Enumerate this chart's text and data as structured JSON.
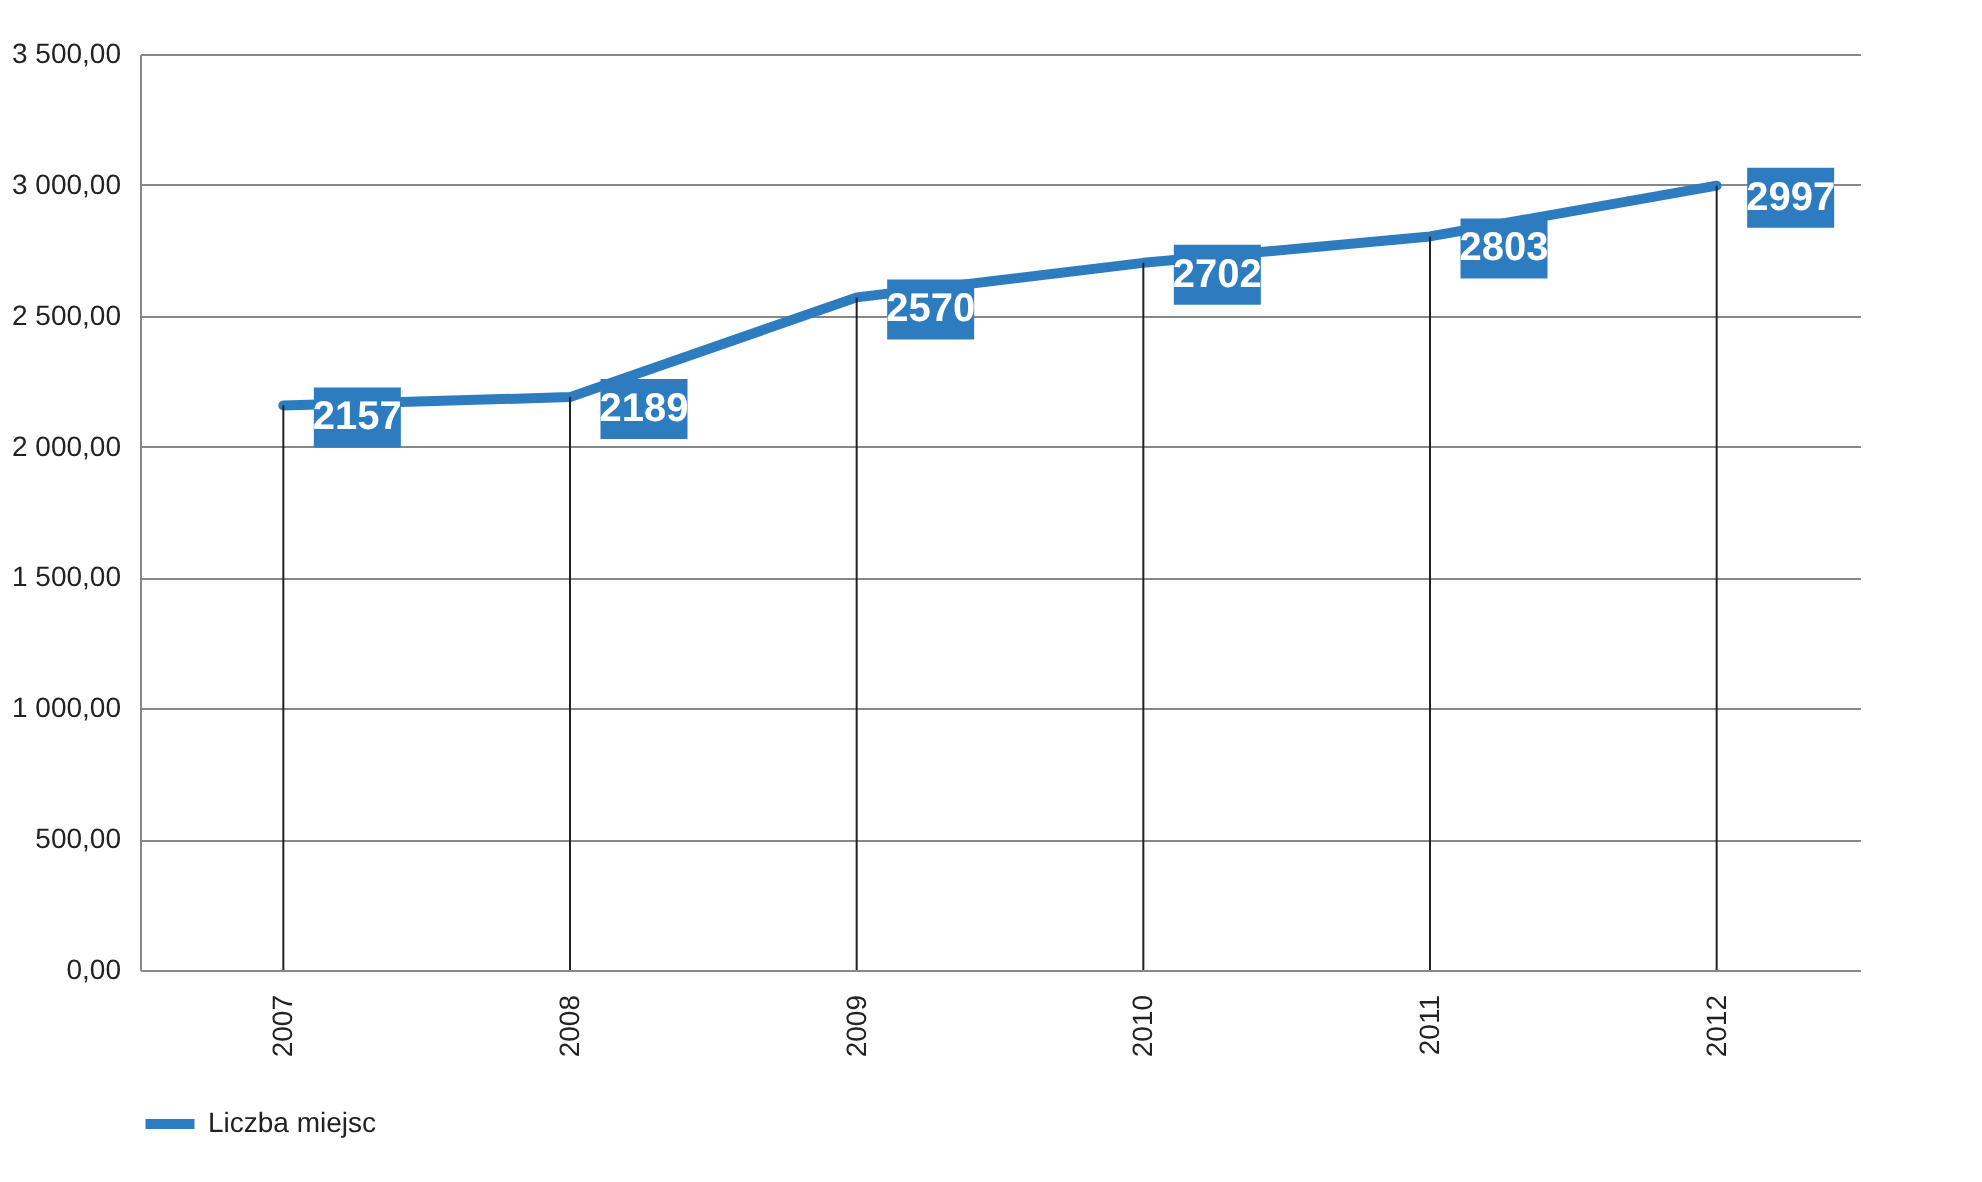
{
  "chart_data": {
    "type": "line",
    "categories": [
      "2007",
      "2008",
      "2009",
      "2010",
      "2011",
      "2012"
    ],
    "series": [
      {
        "name": "Liczba miejsc",
        "color": "#2e7cc0",
        "values": [
          2157,
          2189,
          2570,
          2702,
          2803,
          2997
        ]
      }
    ],
    "ylim": [
      0,
      3500
    ],
    "yticks": [
      {
        "value": 0,
        "label": "0,00"
      },
      {
        "value": 500,
        "label": "500,00"
      },
      {
        "value": 1000,
        "label": "1 000,00"
      },
      {
        "value": 1500,
        "label": "1 500,00"
      },
      {
        "value": 2000,
        "label": "2 000,00"
      },
      {
        "value": 2500,
        "label": "2 500,00"
      },
      {
        "value": 3000,
        "label": "3 000,00"
      },
      {
        "value": 3500,
        "label": "3 500,00"
      }
    ],
    "grid": true,
    "legend": "bottom",
    "data_labels": true,
    "marker": "none",
    "line_style": "solid"
  }
}
